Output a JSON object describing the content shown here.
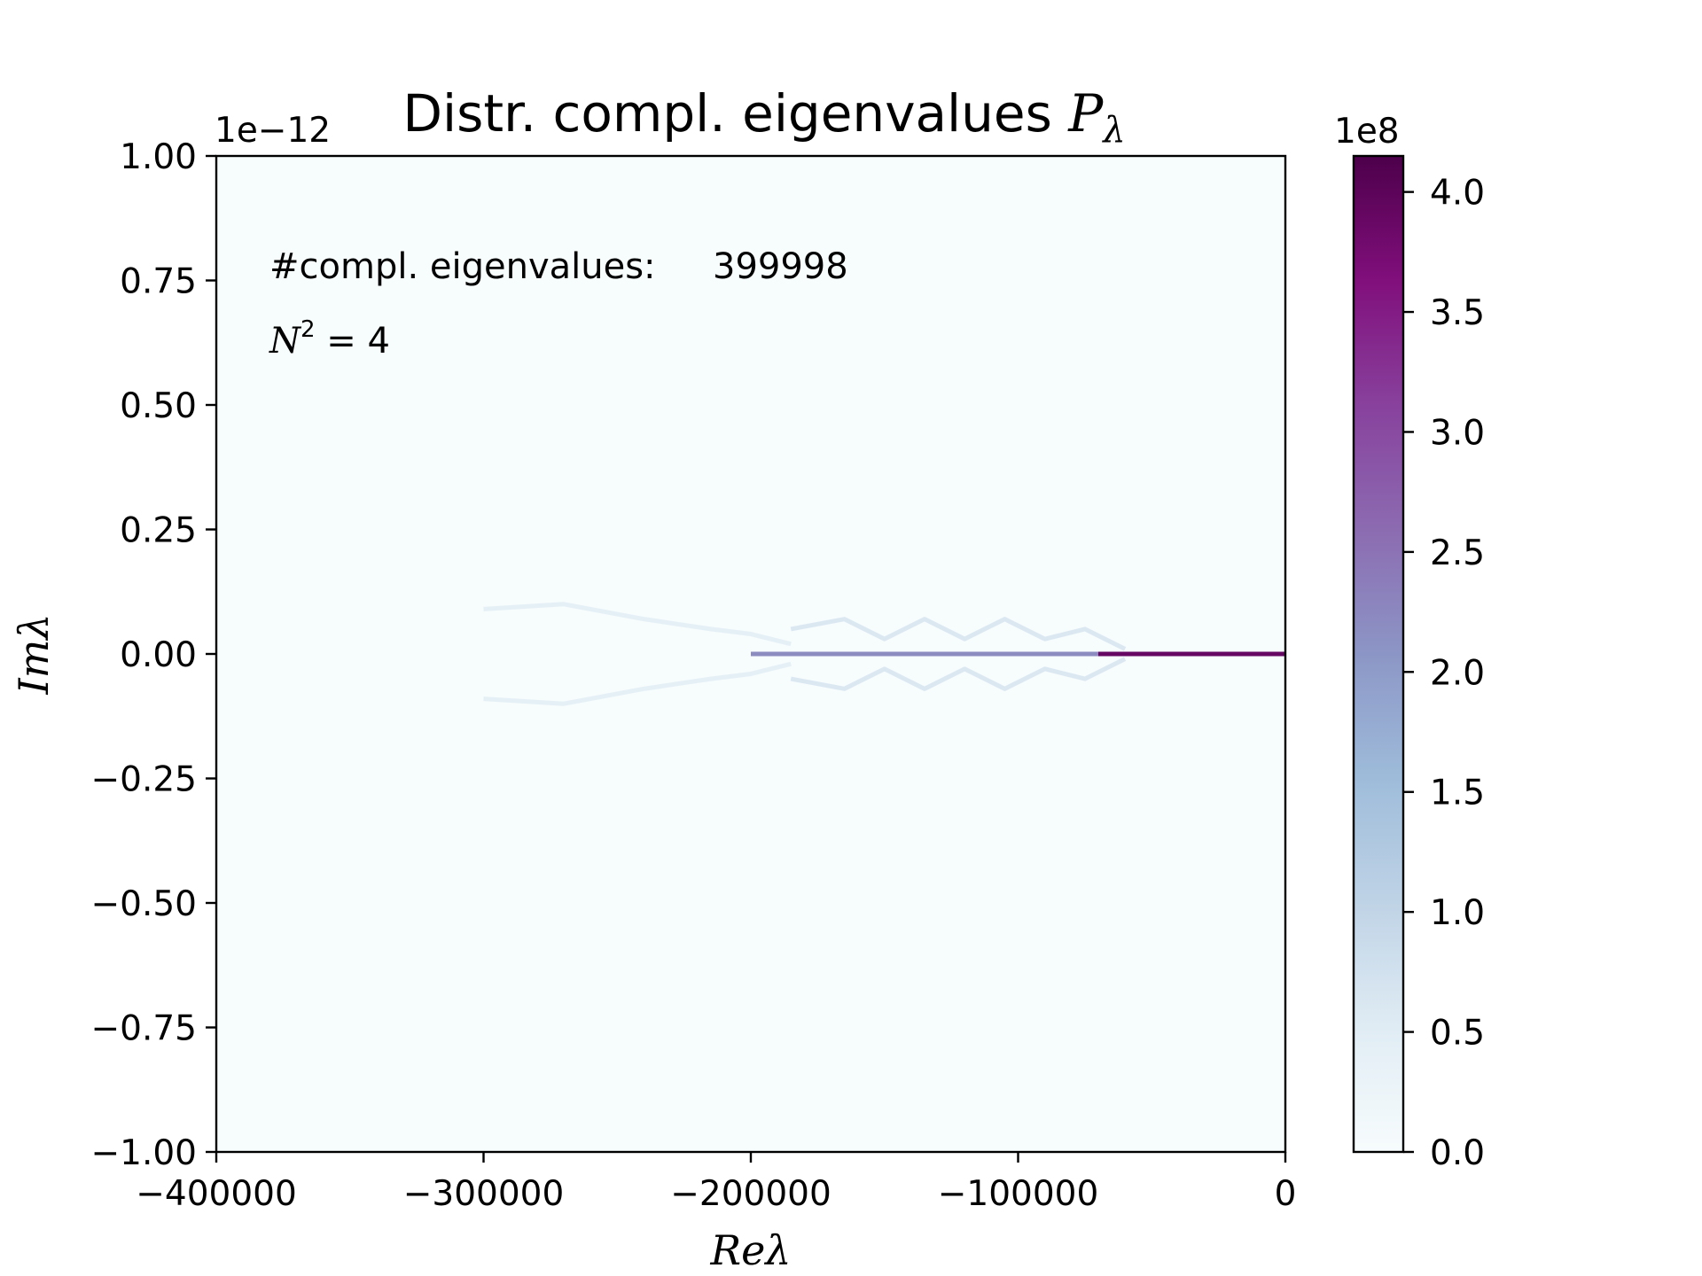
{
  "chart_data": {
    "type": "heatmap",
    "title_main": "Distr. compl. eigenvalues ",
    "title_symbol": "P",
    "title_subscript": "λ",
    "xlabel": "Reλ",
    "ylabel": "Imλ",
    "xlim": [
      -400000,
      0
    ],
    "ylim": [
      -1.0,
      1.0
    ],
    "y_offset_text": "1e−12",
    "x_ticks": [
      -400000,
      -300000,
      -200000,
      -100000,
      0
    ],
    "x_tick_labels": [
      "−400000",
      "−300000",
      "−200000",
      "−100000",
      "0"
    ],
    "y_ticks": [
      1.0,
      0.75,
      0.5,
      0.25,
      0.0,
      -0.25,
      -0.5,
      -0.75,
      -1.0
    ],
    "y_tick_labels": [
      "1.00",
      "0.75",
      "0.50",
      "0.25",
      "0.00",
      "−0.25",
      "−0.50",
      "−0.75",
      "−1.00"
    ],
    "annotations": {
      "count_label": "#compl. eigenvalues:",
      "count_value": "399998",
      "n2_symbol": "N",
      "n2_exponent": "2",
      "n2_rest": " = 4"
    },
    "colorbar": {
      "colormap": "BuPu",
      "range": [
        0.0,
        4.15
      ],
      "ticks": [
        0.0,
        0.5,
        1.0,
        1.5,
        2.0,
        2.5,
        3.0,
        3.5,
        4.0
      ],
      "tick_labels": [
        "0.0",
        "0.5",
        "1.0",
        "1.5",
        "2.0",
        "2.5",
        "3.0",
        "3.5",
        "4.0"
      ],
      "offset_text": "1e8",
      "colors": [
        "#f7fcfd",
        "#e0ecf4",
        "#bfd3e6",
        "#9ebcda",
        "#8c96c6",
        "#8c6bb1",
        "#88419d",
        "#810f7c",
        "#4d004b"
      ]
    },
    "density_features": {
      "real_axis_band": [
        {
          "x_start": -200000,
          "x_end": -70000,
          "value": 2.2
        },
        {
          "x_start": -70000,
          "x_end": 0,
          "value": 3.9
        }
      ],
      "faint_branches": [
        {
          "x": [
            -300000,
            -270000,
            -240000,
            -215000,
            -200000,
            -185000
          ],
          "y_abs": [
            0.09,
            0.1,
            0.07,
            0.05,
            0.04,
            0.02
          ],
          "value": 0.4
        },
        {
          "x": [
            -185000,
            -165000,
            -150000,
            -135000,
            -120000,
            -105000,
            -90000,
            -75000,
            -60000
          ],
          "y_abs": [
            0.05,
            0.07,
            0.03,
            0.07,
            0.03,
            0.07,
            0.03,
            0.05,
            0.01
          ],
          "value": 0.6
        }
      ]
    }
  }
}
